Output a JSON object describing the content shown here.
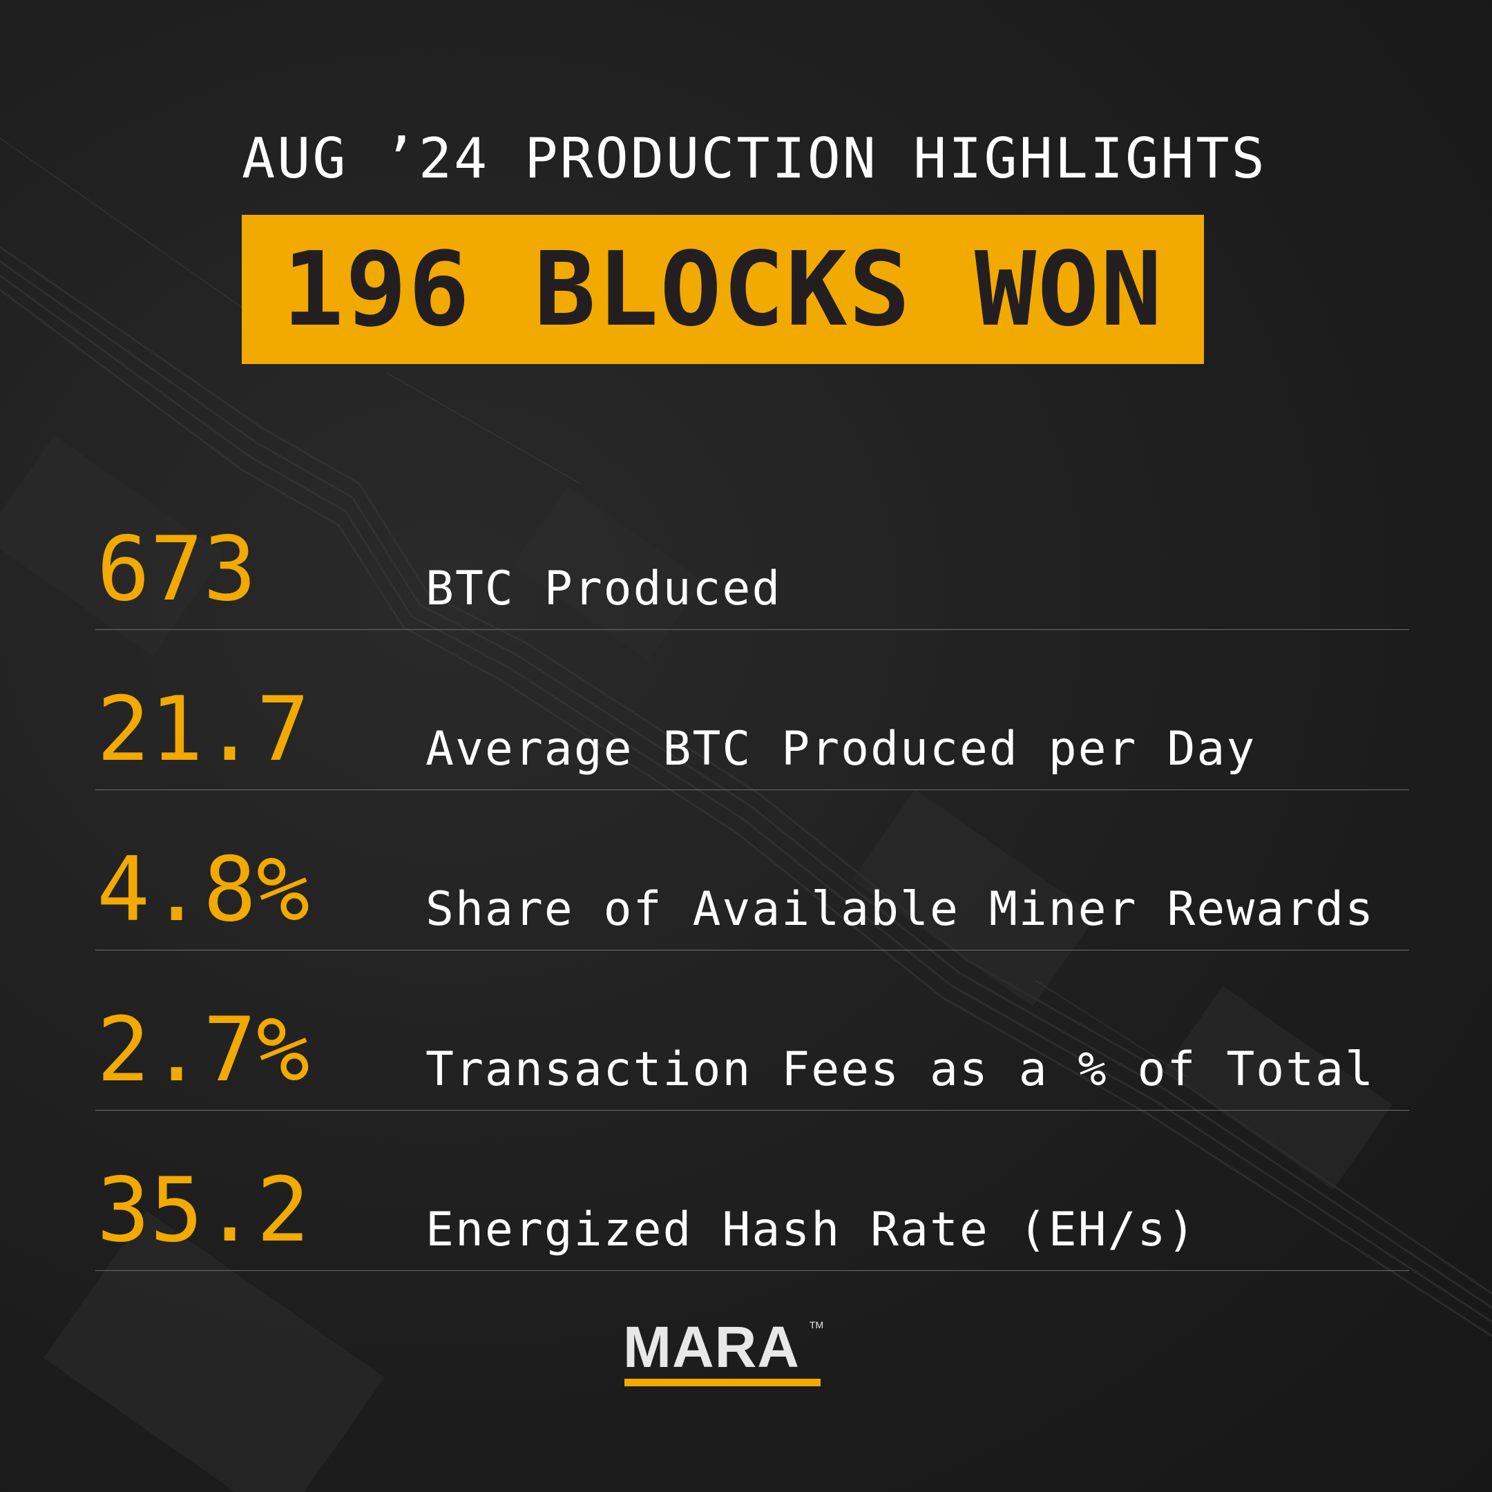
{
  "header": {
    "subtitle": "AUG ’24 PRODUCTION HIGHLIGHTS",
    "banner": "196 BLOCKS WON"
  },
  "stats": [
    {
      "value": "673",
      "label": "BTC Produced"
    },
    {
      "value": "21.7",
      "label": "Average BTC Produced per Day"
    },
    {
      "value": "4.8%",
      "label": "Share of Available Miner Rewards"
    },
    {
      "value": "2.7%",
      "label": "Transaction Fees as a % of Total"
    },
    {
      "value": "35.2",
      "label": "Energized Hash Rate (EH/s)"
    }
  ],
  "logo": {
    "text": "MARA",
    "trademark": "TM"
  },
  "colors": {
    "accent": "#f2a900",
    "background": "#1f1f1f",
    "text": "#ffffff",
    "banner_text": "#231f20"
  }
}
